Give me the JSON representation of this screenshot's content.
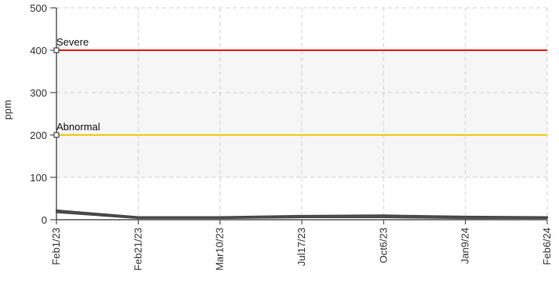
{
  "chart_data": {
    "type": "line",
    "title": "",
    "xlabel": "",
    "ylabel": "ppm",
    "ylim": [
      0,
      500
    ],
    "yticks": [
      0,
      100,
      200,
      300,
      400,
      500
    ],
    "x_tick_labels": [
      "Feb1/23",
      "Feb21/23",
      "Mar10/23",
      "Jul17/23",
      "Oct6/23",
      "Jan9/24",
      "Feb6/24"
    ],
    "grid": true,
    "thresholds": [
      {
        "label": "Severe",
        "value": 400,
        "color": "#e8181c"
      },
      {
        "label": "Abnormal",
        "value": 200,
        "color": "#f5c518"
      }
    ],
    "shaded_band": [
      100,
      400
    ],
    "series": [
      {
        "color": "#4a4a4a",
        "points": [
          {
            "x": "Feb1/23",
            "y": 22
          },
          {
            "x": "Feb21/23",
            "y": 6
          },
          {
            "x": "Mar10/23",
            "y": 6
          },
          {
            "x": "Jul17/23",
            "y": 9
          },
          {
            "x": "Oct6/23",
            "y": 10
          },
          {
            "x": "Jan9/24",
            "y": 7
          },
          {
            "x": "Feb6/24",
            "y": 6
          }
        ]
      },
      {
        "color": "#4a4a4a",
        "points": [
          {
            "x": "Feb1/23",
            "y": 18
          },
          {
            "x": "Feb21/23",
            "y": 4
          },
          {
            "x": "Mar10/23",
            "y": 4
          },
          {
            "x": "Jul17/23",
            "y": 6
          },
          {
            "x": "Oct6/23",
            "y": 6
          },
          {
            "x": "Jan9/24",
            "y": 4
          },
          {
            "x": "Feb6/24",
            "y": 4
          }
        ]
      }
    ]
  }
}
